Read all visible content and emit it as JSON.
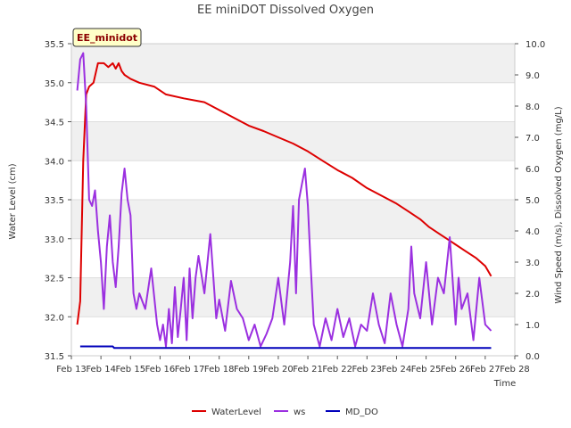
{
  "chart_data": {
    "type": "line",
    "title": "EE miniDOT Dissolved Oxygen",
    "site_badge": "EE_minidot",
    "xlabel": "Time",
    "ylabel_left": "Water Level (cm)",
    "ylabel_right": "Wind Speed (m/s), Dissolved Oxygen (mg/L)",
    "x_ticks": [
      "Feb 13",
      "Feb 14",
      "Feb 15",
      "Feb 16",
      "Feb 17",
      "Feb 18",
      "Feb 19",
      "Feb 20",
      "Feb 21",
      "Feb 22",
      "Feb 23",
      "Feb 24",
      "Feb 25",
      "Feb 26",
      "Feb 27",
      "Feb 28"
    ],
    "xlim_days": [
      13,
      28
    ],
    "ylim_left": [
      31.5,
      35.5
    ],
    "yticks_left": [
      "31.5",
      "32.0",
      "32.5",
      "33.0",
      "33.5",
      "34.0",
      "34.5",
      "35.0",
      "35.5"
    ],
    "ylim_right": [
      0.0,
      10.0
    ],
    "yticks_right": [
      "0.0",
      "1.0",
      "2.0",
      "3.0",
      "4.0",
      "5.0",
      "6.0",
      "7.0",
      "8.0",
      "9.0",
      "10.0"
    ],
    "legend_position": "bottom-center",
    "grid": true,
    "series": [
      {
        "name": "WaterLevel",
        "axis": "left",
        "color": "#dd0000",
        "x": [
          13.2,
          13.3,
          13.4,
          13.5,
          13.6,
          13.75,
          13.9,
          14.1,
          14.25,
          14.4,
          14.5,
          14.6,
          14.7,
          14.8,
          15.0,
          15.3,
          15.8,
          16.2,
          16.8,
          17.5,
          18.0,
          18.5,
          19.0,
          19.5,
          20.0,
          20.5,
          21.0,
          21.5,
          22.0,
          22.5,
          23.0,
          23.5,
          24.0,
          24.4,
          24.8,
          25.1,
          25.5,
          25.9,
          26.3,
          26.7,
          27.0,
          27.2
        ],
        "y": [
          31.9,
          32.2,
          34.0,
          34.85,
          34.95,
          35.0,
          35.25,
          35.25,
          35.2,
          35.25,
          35.18,
          35.25,
          35.15,
          35.1,
          35.05,
          35.0,
          34.95,
          34.85,
          34.8,
          34.75,
          34.65,
          34.55,
          34.45,
          34.38,
          34.3,
          34.22,
          34.12,
          34.0,
          33.88,
          33.78,
          33.65,
          33.55,
          33.45,
          33.35,
          33.25,
          33.15,
          33.05,
          32.95,
          32.85,
          32.75,
          32.65,
          32.52
        ]
      },
      {
        "name": "ws",
        "axis": "right",
        "color": "#9b30e0",
        "x": [
          13.2,
          13.3,
          13.4,
          13.5,
          13.6,
          13.7,
          13.8,
          13.9,
          14.0,
          14.1,
          14.2,
          14.3,
          14.4,
          14.5,
          14.6,
          14.7,
          14.8,
          14.9,
          15.0,
          15.1,
          15.2,
          15.3,
          15.5,
          15.7,
          15.9,
          16.0,
          16.1,
          16.2,
          16.3,
          16.4,
          16.5,
          16.6,
          16.7,
          16.8,
          16.9,
          17.0,
          17.1,
          17.2,
          17.3,
          17.5,
          17.7,
          17.9,
          18.0,
          18.2,
          18.4,
          18.6,
          18.8,
          19.0,
          19.2,
          19.4,
          19.6,
          19.8,
          20.0,
          20.2,
          20.4,
          20.5,
          20.6,
          20.7,
          20.8,
          20.9,
          21.0,
          21.1,
          21.2,
          21.4,
          21.6,
          21.8,
          22.0,
          22.2,
          22.4,
          22.6,
          22.8,
          23.0,
          23.2,
          23.4,
          23.6,
          23.8,
          24.0,
          24.2,
          24.4,
          24.5,
          24.6,
          24.8,
          25.0,
          25.2,
          25.4,
          25.6,
          25.8,
          26.0,
          26.1,
          26.2,
          26.4,
          26.6,
          26.8,
          27.0,
          27.2
        ],
        "y": [
          8.5,
          9.5,
          9.7,
          8.0,
          5.0,
          4.8,
          5.3,
          4.0,
          3.0,
          1.5,
          3.5,
          4.5,
          3.0,
          2.2,
          3.5,
          5.2,
          6.0,
          5.0,
          4.5,
          2.0,
          1.5,
          2.0,
          1.5,
          2.8,
          1.0,
          0.5,
          1.0,
          0.3,
          1.5,
          0.4,
          2.2,
          0.6,
          1.5,
          2.5,
          0.5,
          2.8,
          1.2,
          2.5,
          3.2,
          2.0,
          3.9,
          1.2,
          1.8,
          0.8,
          2.4,
          1.5,
          1.2,
          0.5,
          1.0,
          0.3,
          0.7,
          1.2,
          2.5,
          1.0,
          3.0,
          4.8,
          2.0,
          5.0,
          5.5,
          6.0,
          4.8,
          2.8,
          1.0,
          0.3,
          1.2,
          0.5,
          1.5,
          0.6,
          1.2,
          0.3,
          1.0,
          0.8,
          2.0,
          1.0,
          0.4,
          2.0,
          1.0,
          0.3,
          1.5,
          3.5,
          2.0,
          1.2,
          3.0,
          1.0,
          2.5,
          2.0,
          3.8,
          1.0,
          2.5,
          1.5,
          2.0,
          0.5,
          2.5,
          1.0,
          0.8
        ]
      },
      {
        "name": "MD_DO",
        "axis": "right",
        "color": "#0000bb",
        "x": [
          13.3,
          14.4,
          14.45,
          27.2
        ],
        "y": [
          0.3,
          0.3,
          0.25,
          0.25
        ]
      }
    ]
  }
}
